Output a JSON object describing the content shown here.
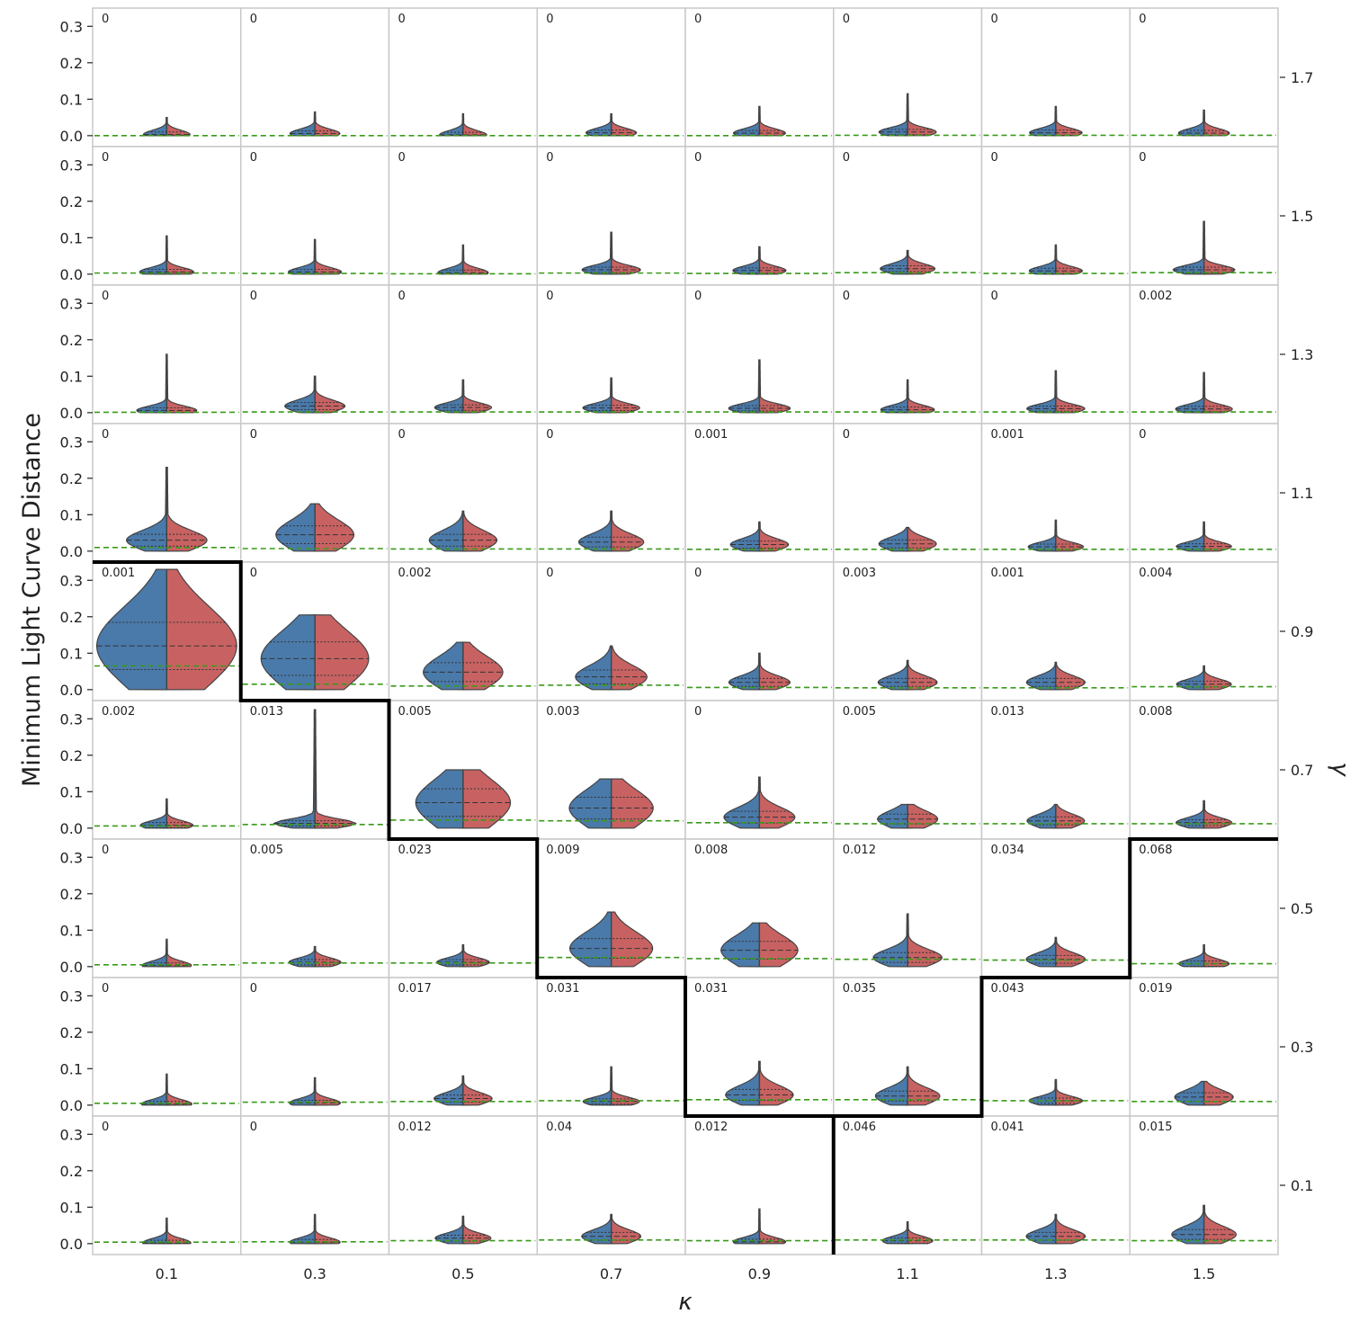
{
  "chart_data": {
    "type": "violin",
    "ylabel": "Minimum Light Curve Distance",
    "xlabel": "κ",
    "row_label": "γ",
    "ylim": [
      -0.03,
      0.35
    ],
    "y_ticks": [
      "0.0",
      "0.1",
      "0.2",
      "0.3"
    ],
    "kappa": [
      "0.1",
      "0.3",
      "0.5",
      "0.7",
      "0.9",
      "1.1",
      "1.3",
      "1.5"
    ],
    "gamma": [
      "1.7",
      "1.5",
      "1.3",
      "1.1",
      "0.9",
      "0.7",
      "0.5",
      "0.3",
      "0.1"
    ],
    "colors": {
      "left_half": "#4a7aaa",
      "right_half": "#c86262",
      "threshold": "#3a9a1a",
      "frame": "#c8c8c8",
      "boundary": "#000000"
    },
    "grid": false,
    "annotations": [
      [
        "0",
        "0",
        "0",
        "0",
        "0",
        "0",
        "0",
        "0"
      ],
      [
        "0",
        "0",
        "0",
        "0",
        "0",
        "0",
        "0",
        "0"
      ],
      [
        "0",
        "0",
        "0",
        "0",
        "0",
        "0",
        "0",
        "0.002"
      ],
      [
        "0",
        "0",
        "0",
        "0",
        "0.001",
        "0",
        "0.001",
        "0"
      ],
      [
        "0.001",
        "0",
        "0.002",
        "0",
        "0",
        "0.003",
        "0.001",
        "0.004"
      ],
      [
        "0.002",
        "0.013",
        "0.005",
        "0.003",
        "0",
        "0.005",
        "0.013",
        "0.008"
      ],
      [
        "0",
        "0.005",
        "0.023",
        "0.009",
        "0.008",
        "0.012",
        "0.034",
        "0.068"
      ],
      [
        "0",
        "0",
        "0.017",
        "0.031",
        "0.031",
        "0.035",
        "0.043",
        "0.019"
      ],
      [
        "0",
        "0",
        "0.012",
        "0.04",
        "0.012",
        "0.046",
        "0.041",
        "0.015"
      ]
    ],
    "median": [
      [
        0.003,
        0.006,
        0.002,
        0.008,
        0.007,
        0.01,
        0.008,
        0.007
      ],
      [
        0.006,
        0.006,
        0.004,
        0.012,
        0.01,
        0.015,
        0.009,
        0.012
      ],
      [
        0.006,
        0.018,
        0.014,
        0.013,
        0.012,
        0.008,
        0.011,
        0.01
      ],
      [
        0.03,
        0.045,
        0.03,
        0.025,
        0.018,
        0.02,
        0.012,
        0.013
      ],
      [
        0.12,
        0.085,
        0.048,
        0.035,
        0.02,
        0.02,
        0.02,
        0.015
      ],
      [
        0.008,
        0.013,
        0.07,
        0.055,
        0.03,
        0.025,
        0.02,
        0.015
      ],
      [
        0.003,
        0.012,
        0.012,
        0.05,
        0.045,
        0.025,
        0.02,
        0.008
      ],
      [
        0.003,
        0.006,
        0.018,
        0.01,
        0.028,
        0.025,
        0.012,
        0.022
      ],
      [
        0.002,
        0.004,
        0.015,
        0.02,
        0.005,
        0.008,
        0.02,
        0.025
      ]
    ],
    "max": [
      [
        0.05,
        0.065,
        0.06,
        0.06,
        0.08,
        0.115,
        0.08,
        0.07
      ],
      [
        0.105,
        0.095,
        0.08,
        0.115,
        0.075,
        0.065,
        0.08,
        0.145
      ],
      [
        0.16,
        0.1,
        0.09,
        0.095,
        0.145,
        0.09,
        0.115,
        0.11
      ],
      [
        0.23,
        0.13,
        0.11,
        0.11,
        0.08,
        0.065,
        0.085,
        0.08
      ],
      [
        0.33,
        0.205,
        0.13,
        0.12,
        0.1,
        0.08,
        0.075,
        0.065
      ],
      [
        0.08,
        0.325,
        0.16,
        0.135,
        0.14,
        0.065,
        0.065,
        0.075
      ],
      [
        0.075,
        0.055,
        0.06,
        0.15,
        0.12,
        0.145,
        0.08,
        0.06
      ],
      [
        0.085,
        0.075,
        0.08,
        0.105,
        0.12,
        0.105,
        0.07,
        0.065
      ],
      [
        0.07,
        0.08,
        0.075,
        0.08,
        0.095,
        0.06,
        0.08,
        0.105
      ]
    ],
    "threshold": [
      [
        0.0,
        0.0,
        0.0,
        0.0,
        0.0,
        0.001,
        0.001,
        0.001
      ],
      [
        0.003,
        0.002,
        0.001,
        0.003,
        0.002,
        0.004,
        0.002,
        0.004
      ],
      [
        0.001,
        0.002,
        0.002,
        0.002,
        0.002,
        0.002,
        0.002,
        0.002
      ],
      [
        0.01,
        0.007,
        0.006,
        0.006,
        0.005,
        0.005,
        0.005,
        0.005
      ],
      [
        0.065,
        0.015,
        0.01,
        0.012,
        0.006,
        0.005,
        0.005,
        0.008
      ],
      [
        0.006,
        0.01,
        0.022,
        0.02,
        0.015,
        0.012,
        0.012,
        0.012
      ],
      [
        0.005,
        0.01,
        0.01,
        0.025,
        0.022,
        0.02,
        0.018,
        0.008
      ],
      [
        0.005,
        0.008,
        0.01,
        0.012,
        0.015,
        0.015,
        0.012,
        0.01
      ],
      [
        0.004,
        0.005,
        0.008,
        0.01,
        0.008,
        0.01,
        0.01,
        0.008
      ]
    ],
    "boundary_description": "staircase separating upper-left and lower-right regimes"
  }
}
